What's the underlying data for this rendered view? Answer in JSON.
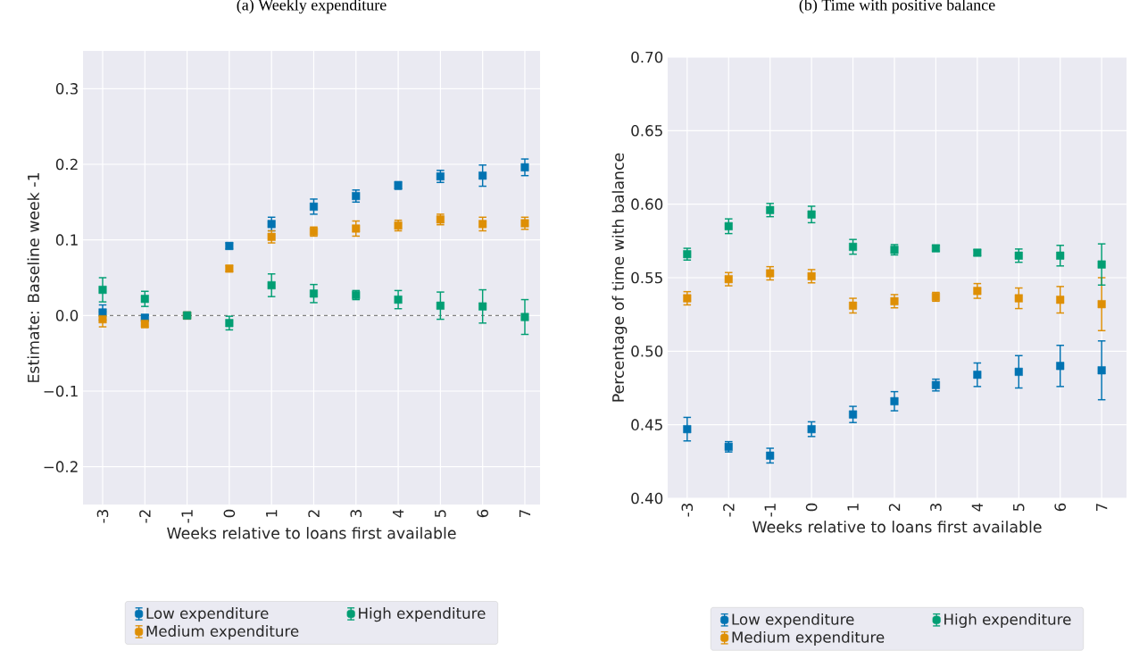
{
  "chart_data": [
    {
      "type": "scatter",
      "title": "(a) Weekly expenditure",
      "xlabel": "Weeks relative to loans first available",
      "ylabel": "Estimate: Baseline week -1",
      "categories": [
        "-3",
        "-2",
        "-1",
        "0",
        "1",
        "2",
        "3",
        "4",
        "5",
        "6",
        "7"
      ],
      "series": [
        {
          "name": "Low expenditure",
          "color": "#0173b2",
          "values": [
            0.004,
            -0.003,
            0,
            0.092,
            0.121,
            0.144,
            0.158,
            0.172,
            0.184,
            0.185,
            0.196
          ],
          "errors": [
            0.01,
            0.004,
            null,
            0.004,
            0.009,
            0.01,
            0.008,
            0.005,
            0.008,
            0.014,
            0.011
          ]
        },
        {
          "name": "Medium expenditure",
          "color": "#de8f05",
          "values": [
            -0.005,
            -0.011,
            0,
            0.062,
            0.104,
            0.111,
            0.115,
            0.119,
            0.127,
            0.121,
            0.122
          ],
          "errors": [
            0.01,
            0.005,
            null,
            0.004,
            0.008,
            0.006,
            0.01,
            0.007,
            0.007,
            0.009,
            0.008
          ]
        },
        {
          "name": "High expenditure",
          "color": "#029e73",
          "values": [
            0.034,
            0.022,
            0,
            -0.01,
            0.04,
            0.029,
            0.027,
            0.021,
            0.013,
            0.012,
            -0.002
          ],
          "errors": [
            0.016,
            0.01,
            null,
            0.009,
            0.015,
            0.012,
            0.006,
            0.012,
            0.018,
            0.022,
            0.023
          ]
        }
      ],
      "ylim": [
        -0.25,
        0.35
      ],
      "yticks": [
        {
          "value": -0.2,
          "label": "−0.2"
        },
        {
          "value": -0.1,
          "label": "−0.1"
        },
        {
          "value": 0,
          "label": "0.0"
        },
        0.1,
        0.2,
        0.3
      ],
      "ref_lines": [
        {
          "axis": "y",
          "value": 0,
          "color": "#808080",
          "line_style": "dashed"
        }
      ],
      "grid": true,
      "legend": "bottom",
      "marker": "square"
    },
    {
      "type": "scatter",
      "title": "(b) Time with positive balance",
      "xlabel": "Weeks relative to loans first available",
      "ylabel": "Percentage of time with balance",
      "categories": [
        "-3",
        "-2",
        "-1",
        "0",
        "1",
        "2",
        "3",
        "4",
        "5",
        "6",
        "7"
      ],
      "series": [
        {
          "name": "Low expenditure",
          "color": "#0173b2",
          "values": [
            0.447,
            0.435,
            0.429,
            0.447,
            0.457,
            0.466,
            0.477,
            0.484,
            0.486,
            0.49,
            0.487
          ],
          "errors": [
            0.008,
            0.0035,
            0.005,
            0.005,
            0.0055,
            0.0065,
            0.004,
            0.008,
            0.011,
            0.014,
            0.02
          ]
        },
        {
          "name": "Medium expenditure",
          "color": "#de8f05",
          "values": [
            0.536,
            0.549,
            0.553,
            0.551,
            0.531,
            0.534,
            0.537,
            0.541,
            0.536,
            0.535,
            0.532
          ],
          "errors": [
            0.0045,
            0.0045,
            0.0045,
            0.0045,
            0.005,
            0.0045,
            0.003,
            0.005,
            0.007,
            0.009,
            0.018
          ]
        },
        {
          "name": "High expenditure",
          "color": "#029e73",
          "values": [
            0.566,
            0.585,
            0.596,
            0.593,
            0.571,
            0.569,
            0.57,
            0.567,
            0.565,
            0.565,
            0.559
          ],
          "errors": [
            0.004,
            0.005,
            0.0045,
            0.0056,
            0.005,
            0.0035,
            0.002,
            0.002,
            0.0045,
            0.007,
            0.014
          ]
        }
      ],
      "ylim": [
        0.4,
        0.7
      ],
      "yticks": [
        {
          "value": 0.4,
          "label": "0.40"
        },
        {
          "value": 0.45,
          "label": "0.45"
        },
        {
          "value": 0.5,
          "label": "0.50"
        },
        {
          "value": 0.55,
          "label": "0.55"
        },
        {
          "value": 0.6,
          "label": "0.60"
        },
        {
          "value": 0.65,
          "label": "0.65"
        },
        {
          "value": 0.7,
          "label": "0.70"
        }
      ],
      "grid": true,
      "legend": "bottom",
      "marker": "square"
    }
  ]
}
